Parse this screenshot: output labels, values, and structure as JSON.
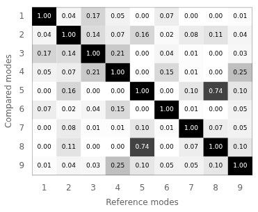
{
  "chart_data": {
    "type": "heatmap",
    "x_label": "Reference modes",
    "y_label": "Compared modes",
    "categories": [
      "1",
      "2",
      "3",
      "4",
      "5",
      "6",
      "7",
      "8",
      "9"
    ],
    "values": [
      [
        1.0,
        0.04,
        0.17,
        0.05,
        0.0,
        0.07,
        0.0,
        0.0,
        0.01
      ],
      [
        0.04,
        1.0,
        0.14,
        0.07,
        0.16,
        0.02,
        0.08,
        0.11,
        0.04
      ],
      [
        0.17,
        0.14,
        1.0,
        0.21,
        0.0,
        0.04,
        0.01,
        0.0,
        0.03
      ],
      [
        0.05,
        0.07,
        0.21,
        1.0,
        0.0,
        0.15,
        0.01,
        0.0,
        0.25
      ],
      [
        0.0,
        0.16,
        0.0,
        0.0,
        1.0,
        0.0,
        0.1,
        0.74,
        0.1
      ],
      [
        0.07,
        0.02,
        0.04,
        0.15,
        0.0,
        1.0,
        0.01,
        0.0,
        0.05
      ],
      [
        0.0,
        0.08,
        0.01,
        0.01,
        0.1,
        0.01,
        1.0,
        0.07,
        0.05
      ],
      [
        0.0,
        0.11,
        0.0,
        0.0,
        0.74,
        0.0,
        0.07,
        1.0,
        0.1
      ],
      [
        0.01,
        0.04,
        0.03,
        0.25,
        0.1,
        0.05,
        0.05,
        0.1,
        1.0
      ]
    ],
    "value_labels": [
      [
        "1.00",
        "0.04",
        "0.17",
        "0.05",
        "0.00",
        "0.07",
        "0.00",
        "0.00",
        "0.01"
      ],
      [
        "0.04",
        "1.00",
        "0.14",
        "0.07",
        "0.16",
        "0.02",
        "0.08",
        "0.11",
        "0.04"
      ],
      [
        "0.17",
        "0.14",
        "1.00",
        "0.21",
        "0.00",
        "0.04",
        "0.01",
        "0.00",
        "0.03"
      ],
      [
        "0.05",
        "0.07",
        "0.21",
        "1.00",
        "0.00",
        "0.15",
        "0.01",
        "0.00",
        "0.25"
      ],
      [
        "0.00",
        "0.16",
        "0.00",
        "0.00",
        "1.00",
        "0.00",
        "0.10",
        "0.74",
        "0.10"
      ],
      [
        "0.07",
        "0.02",
        "0.04",
        "0.15",
        "0.00",
        "1.00",
        "0.01",
        "0.00",
        "0.05"
      ],
      [
        "0.00",
        "0.08",
        "0.01",
        "0.01",
        "0.10",
        "0.01",
        "1.00",
        "0.07",
        "0.05"
      ],
      [
        "0.00",
        "0.11",
        "0.00",
        "0.00",
        "0.74",
        "0.00",
        "0.07",
        "1.00",
        "0.10"
      ],
      [
        "0.01",
        "0.04",
        "0.03",
        "0.25",
        "0.10",
        "0.05",
        "0.05",
        "0.10",
        "1.00"
      ]
    ],
    "data_labels": true,
    "color_range": [
      0,
      1
    ],
    "grid": false
  }
}
